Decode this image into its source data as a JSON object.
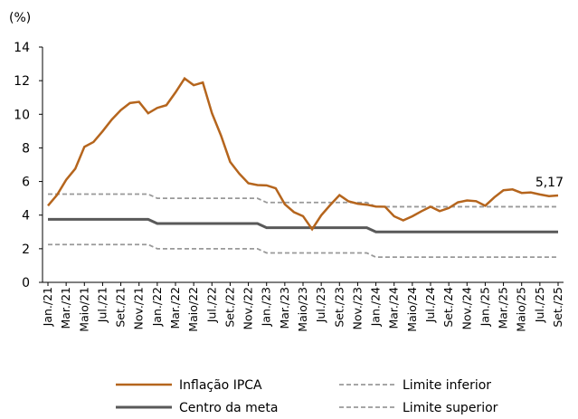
{
  "chart_data": {
    "type": "line",
    "y_label": "(%)",
    "categories": [
      "Jan./21",
      null,
      "Mar./21",
      null,
      "Maio/21",
      null,
      "Jul./21",
      null,
      "Set./21",
      null,
      "Nov./21",
      null,
      "Jan./22",
      null,
      "Mar./22",
      null,
      "Maio/22",
      null,
      "Jul./22",
      null,
      "Set./22",
      null,
      "Nov./22",
      null,
      "Jan./23",
      null,
      "Mar./23",
      null,
      "Maio/23",
      null,
      "Jul./23",
      null,
      "Set./23",
      null,
      "Nov./23",
      null,
      "Jan./24",
      null,
      "Mar./24",
      null,
      "Maio/24",
      null,
      "Jul./24",
      null,
      "Set./24",
      null,
      "Nov./24",
      null,
      "Jan./25",
      null,
      "Mar./25",
      null,
      "Maio/25",
      null,
      "Jul./25",
      null,
      "Set./25"
    ],
    "series": [
      {
        "name": "Inflação IPCA",
        "color": "#b5651d",
        "width": 2.5,
        "dash": false,
        "values": [
          4.56,
          5.2,
          6.1,
          6.76,
          8.06,
          8.35,
          8.99,
          9.68,
          10.25,
          10.67,
          10.74,
          10.06,
          10.38,
          10.54,
          11.3,
          12.13,
          11.73,
          11.89,
          10.07,
          8.73,
          7.17,
          6.47,
          5.9,
          5.79,
          5.77,
          5.6,
          4.65,
          4.18,
          3.94,
          3.16,
          3.99,
          4.61,
          5.19,
          4.82,
          4.68,
          4.62,
          4.51,
          4.5,
          3.93,
          3.69,
          3.93,
          4.23,
          4.5,
          4.24,
          4.42,
          4.76,
          4.87,
          4.83,
          4.56,
          5.06,
          5.48,
          5.53,
          5.32,
          5.35,
          5.23,
          5.13,
          5.17
        ]
      },
      {
        "name": "Limite inferior",
        "color": "#999999",
        "width": 1.8,
        "dash": true,
        "values": [
          2.25,
          2.25,
          2.25,
          2.25,
          2.25,
          2.25,
          2.25,
          2.25,
          2.25,
          2.25,
          2.25,
          2.25,
          2,
          2,
          2,
          2,
          2,
          2,
          2,
          2,
          2,
          2,
          2,
          2,
          1.75,
          1.75,
          1.75,
          1.75,
          1.75,
          1.75,
          1.75,
          1.75,
          1.75,
          1.75,
          1.75,
          1.75,
          1.5,
          1.5,
          1.5,
          1.5,
          1.5,
          1.5,
          1.5,
          1.5,
          1.5,
          1.5,
          1.5,
          1.5,
          1.5,
          1.5,
          1.5,
          1.5,
          1.5,
          1.5,
          1.5,
          1.5,
          1.5
        ]
      },
      {
        "name": "Centro da meta",
        "color": "#595959",
        "width": 3,
        "dash": false,
        "values": [
          3.75,
          3.75,
          3.75,
          3.75,
          3.75,
          3.75,
          3.75,
          3.75,
          3.75,
          3.75,
          3.75,
          3.75,
          3.5,
          3.5,
          3.5,
          3.5,
          3.5,
          3.5,
          3.5,
          3.5,
          3.5,
          3.5,
          3.5,
          3.5,
          3.25,
          3.25,
          3.25,
          3.25,
          3.25,
          3.25,
          3.25,
          3.25,
          3.25,
          3.25,
          3.25,
          3.25,
          3,
          3,
          3,
          3,
          3,
          3,
          3,
          3,
          3,
          3,
          3,
          3,
          3,
          3,
          3,
          3,
          3,
          3,
          3,
          3,
          3
        ]
      },
      {
        "name": "Limite superior",
        "color": "#999999",
        "width": 1.8,
        "dash": true,
        "values": [
          5.25,
          5.25,
          5.25,
          5.25,
          5.25,
          5.25,
          5.25,
          5.25,
          5.25,
          5.25,
          5.25,
          5.25,
          5,
          5,
          5,
          5,
          5,
          5,
          5,
          5,
          5,
          5,
          5,
          5,
          4.75,
          4.75,
          4.75,
          4.75,
          4.75,
          4.75,
          4.75,
          4.75,
          4.75,
          4.75,
          4.75,
          4.75,
          4.5,
          4.5,
          4.5,
          4.5,
          4.5,
          4.5,
          4.5,
          4.5,
          4.5,
          4.5,
          4.5,
          4.5,
          4.5,
          4.5,
          4.5,
          4.5,
          4.5,
          4.5,
          4.5,
          4.5,
          4.5
        ]
      }
    ],
    "annotation": "5,17",
    "ylim": [
      0,
      14
    ],
    "yticks": [
      0,
      2,
      4,
      6,
      8,
      10,
      12,
      14
    ]
  }
}
